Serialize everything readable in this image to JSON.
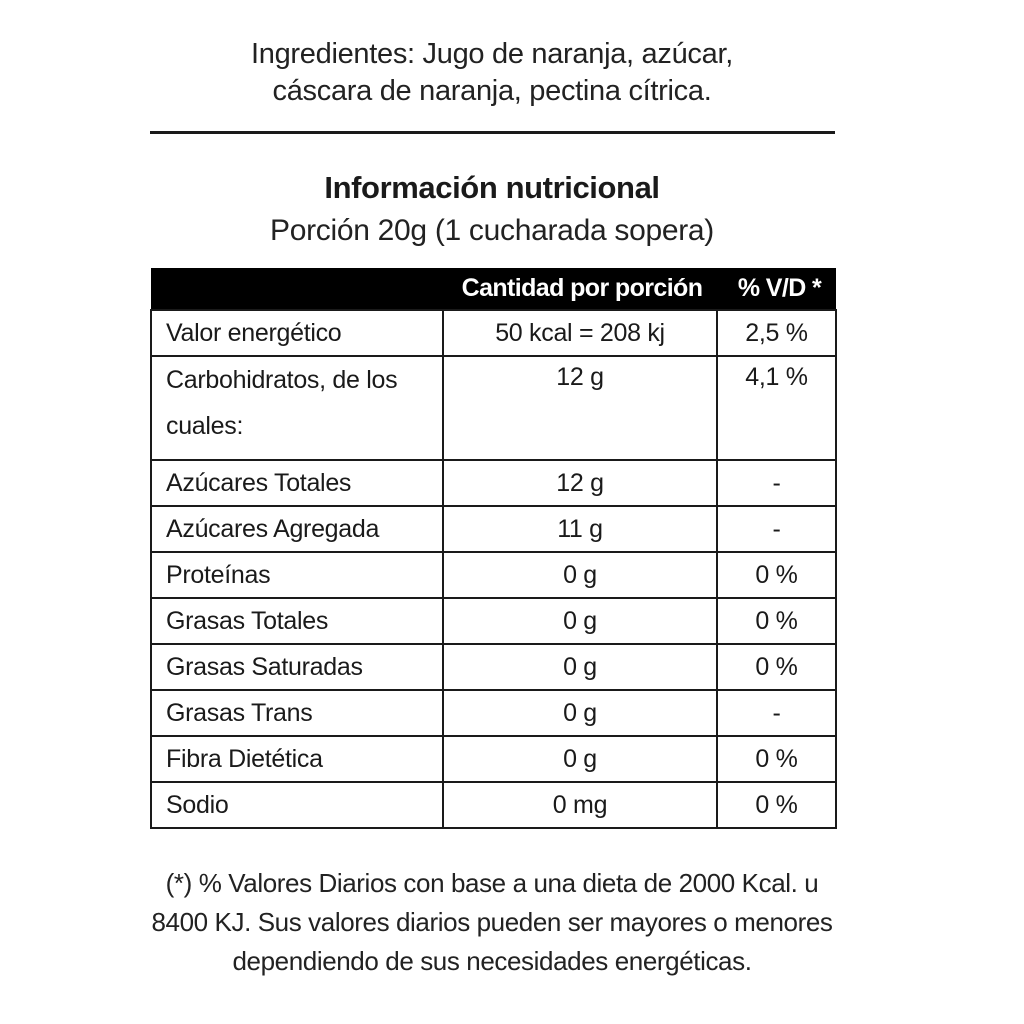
{
  "ingredients": {
    "line1": "Ingredientes: Jugo de naranja, azúcar,",
    "line2": "cáscara de naranja, pectina cítrica."
  },
  "title": "Información nutricional",
  "serving": "Porción 20g (1 cucharada sopera)",
  "table": {
    "headers": [
      "",
      "Cantidad por porción",
      "% V/D *"
    ],
    "rows": [
      {
        "label": "Valor energético",
        "amount": "50 kcal = 208 kj",
        "dv": "2,5 %"
      },
      {
        "label": "Carbohidratos, de los cuales:",
        "amount": "12 g",
        "dv": "4,1 %"
      },
      {
        "label": "Azúcares Totales",
        "amount": "12 g",
        "dv": "-"
      },
      {
        "label": "Azúcares Agregada",
        "amount": "11 g",
        "dv": "-"
      },
      {
        "label": "Proteínas",
        "amount": "0 g",
        "dv": "0 %"
      },
      {
        "label": "Grasas Totales",
        "amount": "0 g",
        "dv": "0 %"
      },
      {
        "label": "Grasas Saturadas",
        "amount": "0 g",
        "dv": "0 %"
      },
      {
        "label": "Grasas Trans",
        "amount": "0 g",
        "dv": "-"
      },
      {
        "label": "Fibra Dietética",
        "amount": "0 g",
        "dv": "0 %"
      },
      {
        "label": "Sodio",
        "amount": "0 mg",
        "dv": "0 %"
      }
    ]
  },
  "footnote": {
    "line1": "(*) % Valores Diarios con base a una dieta de 2000 Kcal. u",
    "line2": "8400 KJ. Sus valores diarios pueden ser mayores o menores",
    "line3": "dependiendo de sus necesidades energéticas."
  }
}
